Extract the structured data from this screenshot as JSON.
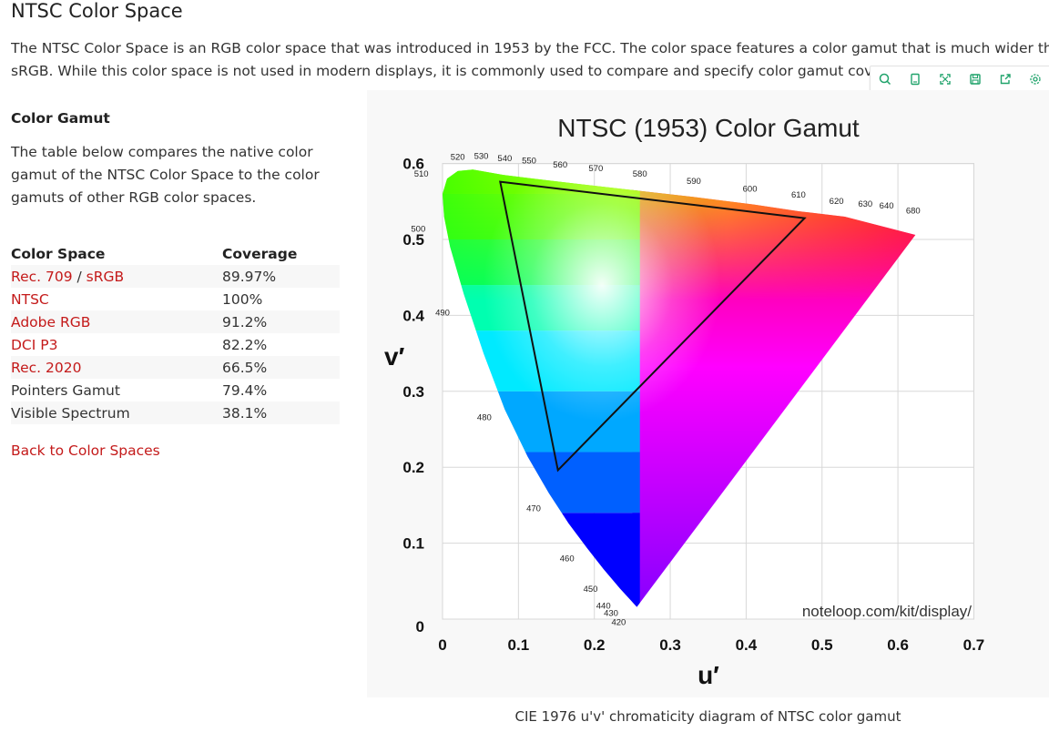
{
  "page": {
    "title": "NTSC Color Space",
    "intro_line1": "The NTSC Color Space is an RGB color space that was introduced in 1953 by the FCC. The color space features a color gamut that is much wider than",
    "intro_line2": "sRGB. While this color space is not used in modern displays, it is commonly used to compare and specify color gamut covera"
  },
  "toolbar": {
    "icons": [
      "search-icon",
      "copy-icon",
      "expand-icon",
      "save-icon",
      "share-icon",
      "settings-icon"
    ],
    "accent": "#20a36b"
  },
  "gamut_section": {
    "heading": "Color Gamut",
    "description": "The table below compares the native color gamut of the NTSC Color Space to the color gamuts of other RGB color spaces."
  },
  "coverage_table": {
    "headers": [
      "Color Space",
      "Coverage"
    ],
    "rows": [
      {
        "name": "Rec. 709",
        "name_suffix": " / ",
        "name2": "sRGB",
        "coverage": "89.97%"
      },
      {
        "name": "NTSC",
        "coverage": "100%"
      },
      {
        "name": "Adobe RGB",
        "coverage": "91.2%"
      },
      {
        "name": "DCI P3",
        "coverage": "82.2%"
      },
      {
        "name": "Rec. 2020",
        "coverage": "66.5%"
      },
      {
        "name": "Pointers Gamut",
        "coverage": "79.4%"
      },
      {
        "name": "Visible Spectrum",
        "coverage": "38.1%"
      }
    ],
    "link_color": "#c41a1a"
  },
  "back_link": "Back to Color Spaces",
  "caption": "CIE 1976 u'v' chromaticity diagram of NTSC color gamut",
  "chart_data": {
    "type": "scatter",
    "title": "NTSC (1953) Color Gamut",
    "xlabel": "u′",
    "ylabel": "v′",
    "xlim": [
      0,
      0.7
    ],
    "ylim": [
      0,
      0.6
    ],
    "x_ticks": [
      "0",
      "0.1",
      "0.2",
      "0.3",
      "0.4",
      "0.5",
      "0.6",
      "0.7"
    ],
    "y_ticks": [
      "0",
      "0.1",
      "0.2",
      "0.3",
      "0.4",
      "0.5",
      "0.6"
    ],
    "grid": true,
    "watermark": "noteloop.com/kit/display/",
    "gamut_triangle": [
      {
        "u": 0.076,
        "v": 0.576
      },
      {
        "u": 0.477,
        "v": 0.528
      },
      {
        "u": 0.152,
        "v": 0.196
      }
    ],
    "wavelength_labels": [
      {
        "label": "520",
        "u": 0.02,
        "v": 0.605
      },
      {
        "label": "530",
        "u": 0.051,
        "v": 0.606
      },
      {
        "label": "540",
        "u": 0.082,
        "v": 0.603
      },
      {
        "label": "550",
        "u": 0.114,
        "v": 0.6
      },
      {
        "label": "560",
        "u": 0.155,
        "v": 0.595
      },
      {
        "label": "570",
        "u": 0.202,
        "v": 0.59
      },
      {
        "label": "580",
        "u": 0.26,
        "v": 0.583
      },
      {
        "label": "590",
        "u": 0.331,
        "v": 0.573
      },
      {
        "label": "600",
        "u": 0.405,
        "v": 0.563
      },
      {
        "label": "610",
        "u": 0.469,
        "v": 0.555
      },
      {
        "label": "620",
        "u": 0.519,
        "v": 0.547
      },
      {
        "label": "630",
        "u": 0.557,
        "v": 0.543
      },
      {
        "label": "640",
        "u": 0.585,
        "v": 0.541
      },
      {
        "label": "680",
        "u": 0.62,
        "v": 0.534
      },
      {
        "label": "510",
        "u": -0.028,
        "v": 0.583
      },
      {
        "label": "500",
        "u": -0.032,
        "v": 0.51
      },
      {
        "label": "490",
        "u": 0.0,
        "v": 0.4
      },
      {
        "label": "480",
        "u": 0.055,
        "v": 0.262
      },
      {
        "label": "470",
        "u": 0.12,
        "v": 0.142
      },
      {
        "label": "460",
        "u": 0.164,
        "v": 0.076
      },
      {
        "label": "450",
        "u": 0.195,
        "v": 0.036
      },
      {
        "label": "440",
        "u": 0.212,
        "v": 0.014
      },
      {
        "label": "430",
        "u": 0.222,
        "v": 0.004
      },
      {
        "label": "420",
        "u": 0.232,
        "v": -0.008
      }
    ],
    "locus": [
      [
        0.256,
        0.016
      ],
      [
        0.234,
        0.04
      ],
      [
        0.212,
        0.066
      ],
      [
        0.19,
        0.094
      ],
      [
        0.166,
        0.126
      ],
      [
        0.14,
        0.166
      ],
      [
        0.112,
        0.214
      ],
      [
        0.082,
        0.276
      ],
      [
        0.054,
        0.35
      ],
      [
        0.028,
        0.428
      ],
      [
        0.01,
        0.49
      ],
      [
        0.002,
        0.53
      ],
      [
        0.0,
        0.56
      ],
      [
        0.006,
        0.58
      ],
      [
        0.02,
        0.59
      ],
      [
        0.04,
        0.592
      ],
      [
        0.08,
        0.585
      ],
      [
        0.12,
        0.58
      ],
      [
        0.18,
        0.573
      ],
      [
        0.25,
        0.565
      ],
      [
        0.33,
        0.556
      ],
      [
        0.41,
        0.546
      ],
      [
        0.47,
        0.537
      ],
      [
        0.53,
        0.53
      ],
      [
        0.623,
        0.506
      ]
    ]
  }
}
